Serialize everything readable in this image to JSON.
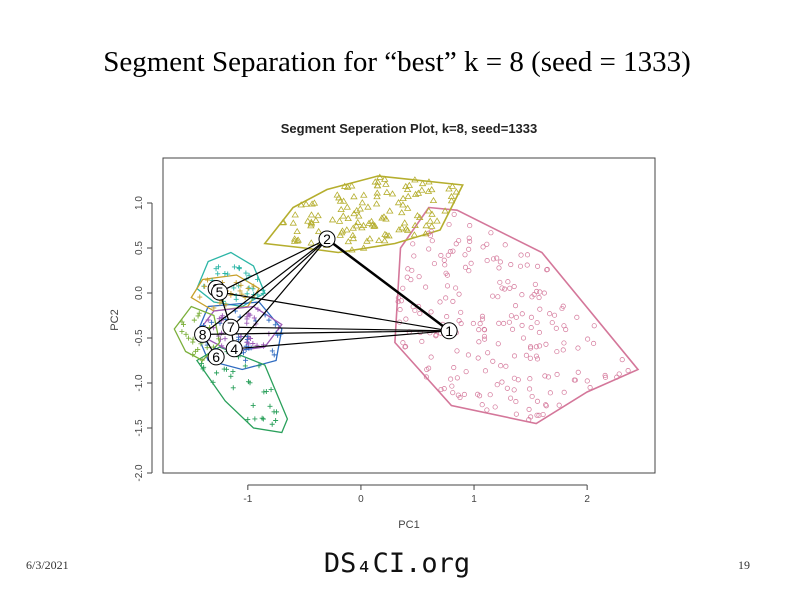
{
  "slide": {
    "title": "Segment Separation for “best” k = 8 (seed = 1333)",
    "date": "6/3/2021",
    "logo": "DS₄CI.org",
    "page_number": "19"
  },
  "chart_data": {
    "type": "scatter",
    "title": "Segment Seperation Plot, k=8, seed=1333",
    "xlabel": "PC1",
    "ylabel": "PC2",
    "xlim": [
      -1.75,
      2.6
    ],
    "ylim": [
      -2.0,
      1.5
    ],
    "xticks": [
      -1,
      0,
      1,
      2
    ],
    "yticks": [
      -2.0,
      -1.5,
      -1.0,
      -0.5,
      0.0,
      0.5,
      1.0
    ],
    "ytick_labels": [
      "-2.0",
      "-1.5",
      "-1.0",
      "-0.5",
      "0.0",
      "0.5",
      "1.0"
    ],
    "grid": false,
    "clusters": [
      {
        "label": "1",
        "color": "#D4779A",
        "center": [
          0.78,
          -0.42
        ],
        "hull": [
          [
            0.6,
            0.95
          ],
          [
            0.85,
            0.92
          ],
          [
            1.6,
            0.45
          ],
          [
            2.45,
            -0.85
          ],
          [
            2.0,
            -1.1
          ],
          [
            1.55,
            -1.45
          ],
          [
            0.8,
            -1.25
          ],
          [
            0.3,
            -0.55
          ],
          [
            0.35,
            0.5
          ]
        ]
      },
      {
        "label": "2",
        "color": "#B5AE2E",
        "center": [
          -0.3,
          0.6
        ],
        "hull": [
          [
            -0.85,
            0.55
          ],
          [
            -0.6,
            0.95
          ],
          [
            -0.3,
            1.15
          ],
          [
            0.15,
            1.3
          ],
          [
            0.9,
            1.2
          ],
          [
            0.7,
            0.7
          ],
          [
            0.3,
            0.55
          ],
          [
            -0.2,
            0.45
          ],
          [
            -0.5,
            0.5
          ]
        ]
      },
      {
        "label": "3",
        "color": "#2BB5A6",
        "center": [
          -1.28,
          0.05
        ],
        "hull": [
          [
            -1.45,
            0.05
          ],
          [
            -1.35,
            0.35
          ],
          [
            -1.15,
            0.45
          ],
          [
            -0.95,
            0.3
          ],
          [
            -0.85,
            0.0
          ],
          [
            -1.05,
            -0.15
          ],
          [
            -1.3,
            -0.1
          ]
        ]
      },
      {
        "label": "4",
        "color": "#2E6BC0",
        "center": [
          -1.12,
          -0.62
        ],
        "hull": [
          [
            -1.45,
            -0.45
          ],
          [
            -1.35,
            -0.15
          ],
          [
            -0.9,
            -0.1
          ],
          [
            -0.7,
            -0.4
          ],
          [
            -0.75,
            -0.75
          ],
          [
            -1.05,
            -0.85
          ],
          [
            -1.35,
            -0.75
          ]
        ]
      },
      {
        "label": "5",
        "color": "#C7A02A",
        "center": [
          -1.25,
          0.01
        ],
        "hull": [
          [
            -1.5,
            -0.05
          ],
          [
            -1.4,
            0.15
          ],
          [
            -1.1,
            0.2
          ],
          [
            -0.9,
            0.05
          ],
          [
            -1.0,
            -0.15
          ],
          [
            -1.3,
            -0.2
          ]
        ]
      },
      {
        "label": "6",
        "color": "#2AA05B",
        "center": [
          -1.28,
          -0.71
        ],
        "hull": [
          [
            -1.45,
            -0.75
          ],
          [
            -1.25,
            -0.6
          ],
          [
            -0.85,
            -0.8
          ],
          [
            -0.65,
            -1.4
          ],
          [
            -0.7,
            -1.55
          ],
          [
            -0.95,
            -1.5
          ],
          [
            -1.2,
            -1.2
          ]
        ]
      },
      {
        "label": "7",
        "color": "#9B59B6",
        "center": [
          -1.15,
          -0.38
        ],
        "hull": [
          [
            -1.45,
            -0.45
          ],
          [
            -1.3,
            -0.2
          ],
          [
            -0.95,
            -0.15
          ],
          [
            -0.7,
            -0.35
          ],
          [
            -0.85,
            -0.6
          ],
          [
            -1.15,
            -0.65
          ]
        ]
      },
      {
        "label": "8",
        "color": "#7BAF3A",
        "center": [
          -1.4,
          -0.46
        ],
        "hull": [
          [
            -1.65,
            -0.4
          ],
          [
            -1.5,
            -0.15
          ],
          [
            -1.3,
            -0.25
          ],
          [
            -1.25,
            -0.55
          ],
          [
            -1.4,
            -0.75
          ],
          [
            -1.55,
            -0.65
          ]
        ]
      }
    ],
    "links": [
      {
        "from": "1",
        "to": "2"
      },
      {
        "from": "1",
        "to": "5"
      },
      {
        "from": "1",
        "to": "7"
      },
      {
        "from": "1",
        "to": "4"
      },
      {
        "from": "1",
        "to": "8"
      },
      {
        "from": "2",
        "to": "5"
      },
      {
        "from": "2",
        "to": "7"
      },
      {
        "from": "2",
        "to": "8"
      },
      {
        "from": "2",
        "to": "4"
      },
      {
        "from": "5",
        "to": "7"
      },
      {
        "from": "7",
        "to": "4"
      },
      {
        "from": "8",
        "to": "6"
      }
    ]
  }
}
